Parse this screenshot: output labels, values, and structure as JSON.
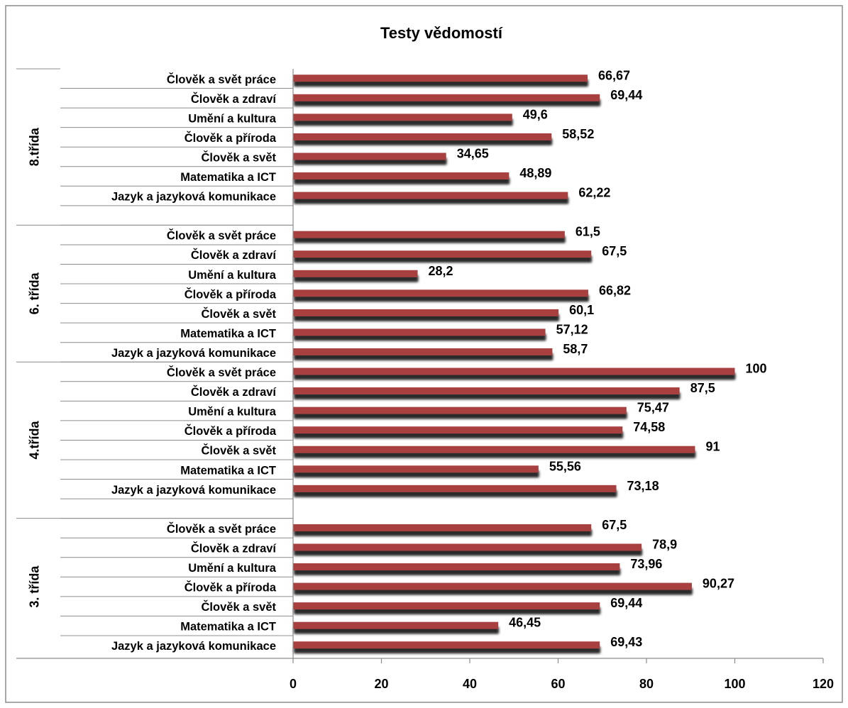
{
  "colors": {
    "bar": "#a8403f",
    "shadow": "#2a2a2a",
    "axis": "#8c8c8c"
  },
  "chart_data": {
    "type": "bar",
    "orientation": "horizontal",
    "title": "Testy vědomostí",
    "xlabel": "",
    "ylabel": "",
    "xlim": [
      0,
      120
    ],
    "xticks": [
      0,
      20,
      40,
      60,
      80,
      100,
      120
    ],
    "grid": false,
    "legend": "none",
    "groups": [
      {
        "name": "8.třída",
        "categories": [
          "Člověk a svět práce",
          "Člověk a zdraví",
          "Umění a kultura",
          "Člověk a příroda",
          "Člověk a svět",
          "Matematika a ICT",
          "Jazyk a jazyková komunikace"
        ],
        "values": [
          66.67,
          69.44,
          49.6,
          58.52,
          34.65,
          48.89,
          62.22
        ],
        "value_labels": [
          "66,67",
          "69,44",
          "49,6",
          "58,52",
          "34,65",
          "48,89",
          "62,22"
        ]
      },
      {
        "name": "6. třída",
        "categories": [
          "Člověk a svět práce",
          "Člověk a zdraví",
          "Umění a kultura",
          "Člověk a příroda",
          "Člověk a svět",
          "Matematika a ICT",
          "Jazyk a jazyková komunikace"
        ],
        "values": [
          61.5,
          67.5,
          28.2,
          66.82,
          60.1,
          57.12,
          58.7
        ],
        "value_labels": [
          "61,5",
          "67,5",
          "28,2",
          "66,82",
          "60,1",
          "57,12",
          "58,7"
        ]
      },
      {
        "name": "4.třída",
        "categories": [
          "Člověk a svět práce",
          "Člověk a zdraví",
          "Umění a kultura",
          "Člověk a příroda",
          "Člověk a svět",
          "Matematika a ICT",
          "Jazyk a jazyková komunikace"
        ],
        "values": [
          100,
          87.5,
          75.47,
          74.58,
          91,
          55.56,
          73.18
        ],
        "value_labels": [
          "100",
          "87,5",
          "75,47",
          "74,58",
          "91",
          "55,56",
          "73,18"
        ]
      },
      {
        "name": "3. třída",
        "categories": [
          "Člověk a svět práce",
          "Člověk a zdraví",
          "Umění a kultura",
          "Člověk a příroda",
          "Člověk a svět",
          "Matematika a ICT",
          "Jazyk a jazyková komunikace"
        ],
        "values": [
          67.5,
          78.9,
          73.96,
          90.27,
          69.44,
          46.45,
          69.43
        ],
        "value_labels": [
          "67,5",
          "78,9",
          "73,96",
          "90,27",
          "69,44",
          "46,45",
          "69,43"
        ]
      }
    ]
  }
}
